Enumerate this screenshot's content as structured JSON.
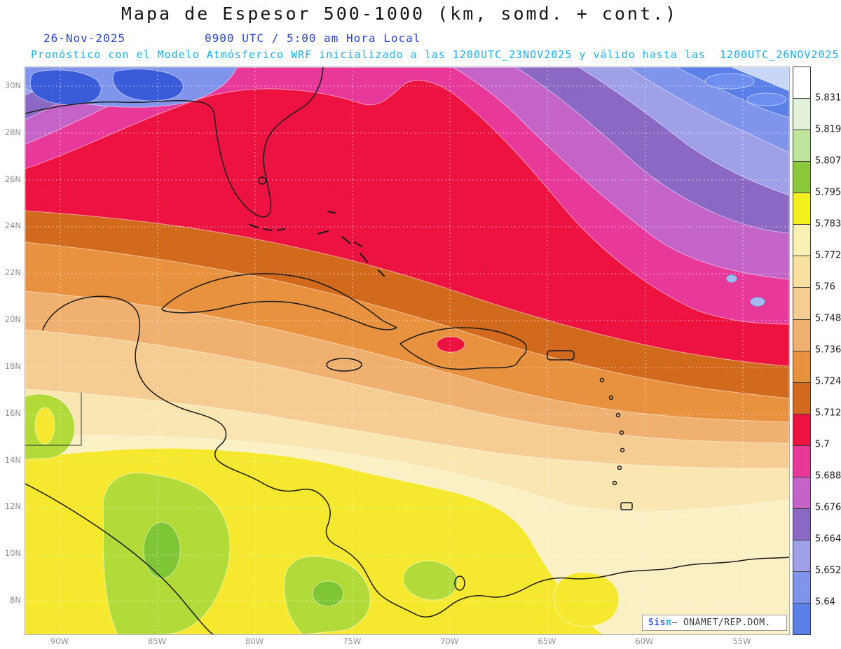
{
  "header": {
    "title": "Mapa de Espesor 500-1000 (km, somd. + cont.)",
    "date": "26-Nov-2025",
    "valid_time": "0900 UTC / 5:00 am Hora Local",
    "forecast_note": "Pronóstico con el Modelo Atmósferico WRF inicializado a las 1200UTC_23NOV2025 y válido hasta las  1200UTC_26NOV2025"
  },
  "axes": {
    "lat_labels": [
      "30N",
      "28N",
      "26N",
      "24N",
      "22N",
      "20N",
      "18N",
      "16N",
      "14N",
      "12N",
      "10N",
      "8N"
    ],
    "lon_labels": [
      "90W",
      "85W",
      "80W",
      "75W",
      "70W",
      "65W",
      "60W",
      "55W"
    ]
  },
  "colorbar": {
    "labels_low_to_high": [
      "5.64",
      "5.652",
      "5.664",
      "5.676",
      "5.688",
      "5.7",
      "5.712",
      "5.724",
      "5.736",
      "5.748",
      "5.76",
      "5.772",
      "5.783",
      "5.795",
      "5.807",
      "5.819",
      "5.831"
    ],
    "colors_low_to_high": [
      "#5a80e8",
      "#8094ec",
      "#a0a0e8",
      "#8a68c4",
      "#c464c8",
      "#e8389a",
      "#ee1240",
      "#d26a1e",
      "#e8913e",
      "#f0b070",
      "#f5cd92",
      "#f8e0a0",
      "#faf0b4",
      "#f4ef1e",
      "#8cc83c",
      "#bfe49c",
      "#e4f2dc",
      "#ffffff"
    ]
  },
  "credit": {
    "brand": "Sis",
    "pi": "π",
    "rest": "– ONAMET/REP.DOM."
  },
  "chart_data": {
    "type": "heatmap",
    "title": "Mapa de Espesor 500-1000 (km, somd. + cont.)",
    "variable": "Espesor (thickness) 500-1000 hPa",
    "units": "km",
    "valid_date": "26-Nov-2025",
    "valid_time": "0900 UTC / 5:00 am Hora Local",
    "model": "WRF",
    "initialized": "1200UTC_23NOV2025",
    "valid_until": "1200UTC_26NOV2025",
    "x_ticks": [
      "90W",
      "85W",
      "80W",
      "75W",
      "70W",
      "65W",
      "60W",
      "55W"
    ],
    "y_ticks": [
      "30N",
      "28N",
      "26N",
      "24N",
      "22N",
      "20N",
      "18N",
      "16N",
      "14N",
      "12N",
      "10N",
      "8N"
    ],
    "contour_levels_km": [
      5.64,
      5.652,
      5.664,
      5.676,
      5.688,
      5.7,
      5.712,
      5.724,
      5.736,
      5.748,
      5.76,
      5.772,
      5.783,
      5.795,
      5.807,
      5.819,
      5.831
    ],
    "palette_low_to_high": [
      "#5a80e8",
      "#8094ec",
      "#a0a0e8",
      "#8a68c4",
      "#c464c8",
      "#e8389a",
      "#ee1240",
      "#d26a1e",
      "#e8913e",
      "#f0b070",
      "#f5cd92",
      "#f8e0a0",
      "#faf0b4",
      "#f4ef1e",
      "#8cc83c",
      "#bfe49c",
      "#e4f2dc",
      "#ffffff"
    ],
    "legend_position": "right",
    "grid": "dotted, every 2 deg latitude / 5 deg longitude",
    "pattern": "Thickness decreases toward the north: ~5.78-5.80 km (yellow/green) over Central America and northern South America, ~5.70-5.712 km (red band) arcing from the western Gulf of Mexico across Florida and Cuba into the eastern Caribbean, down to ~5.64 km (blue) northeast of the Bahamas and over the subtropical Atlantic."
  }
}
